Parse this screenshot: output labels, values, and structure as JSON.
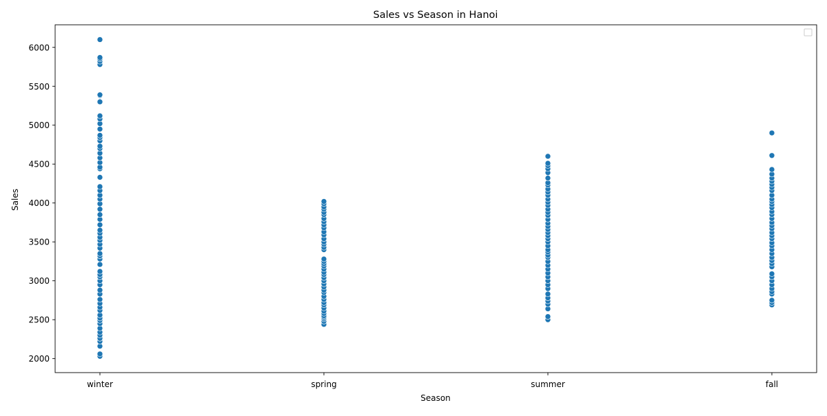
{
  "chart_data": {
    "type": "scatter",
    "title": "Sales vs Season in Hanoi",
    "xlabel": "Season",
    "ylabel": "Sales",
    "categories": [
      "winter",
      "spring",
      "summer",
      "fall"
    ],
    "yticks": [
      2000,
      2500,
      3000,
      3500,
      4000,
      4500,
      5000,
      5500,
      6000
    ],
    "ylim": [
      1820,
      6290
    ],
    "grid": false,
    "legend": "top-right",
    "legend_entries": [],
    "marker_color": "#1f77b4",
    "marker_edge_color": "#ffffff",
    "series": [
      {
        "category": "winter",
        "values": [
          2030,
          2060,
          2160,
          2220,
          2260,
          2300,
          2340,
          2390,
          2450,
          2490,
          2520,
          2560,
          2620,
          2660,
          2710,
          2760,
          2830,
          2880,
          2950,
          3000,
          3050,
          3080,
          3120,
          3210,
          3280,
          3320,
          3350,
          3420,
          3470,
          3520,
          3560,
          3610,
          3650,
          3720,
          3790,
          3850,
          3920,
          3990,
          4050,
          4100,
          4160,
          4210,
          4330,
          4440,
          4460,
          4520,
          4580,
          4640,
          4700,
          4730,
          4800,
          4840,
          4870,
          4950,
          5020,
          5080,
          5120,
          5300,
          5380,
          5390,
          5780,
          5820,
          5850,
          5870,
          6100
        ]
      },
      {
        "category": "spring",
        "values": [
          2440,
          2480,
          2510,
          2530,
          2550,
          2580,
          2610,
          2650,
          2690,
          2720,
          2760,
          2800,
          2850,
          2880,
          2920,
          2960,
          3000,
          3040,
          3080,
          3110,
          3150,
          3190,
          3220,
          3250,
          3280,
          3400,
          3430,
          3470,
          3500,
          3540,
          3590,
          3630,
          3680,
          3720,
          3760,
          3800,
          3850,
          3880,
          3920,
          3950,
          3990,
          4020
        ]
      },
      {
        "category": "summer",
        "values": [
          2500,
          2540,
          2640,
          2700,
          2740,
          2780,
          2830,
          2900,
          2950,
          3000,
          3050,
          3100,
          3150,
          3200,
          3250,
          3300,
          3330,
          3370,
          3400,
          3450,
          3500,
          3540,
          3580,
          3620,
          3660,
          3700,
          3740,
          3790,
          3840,
          3880,
          3920,
          3970,
          4010,
          4050,
          4100,
          4140,
          4180,
          4230,
          4260,
          4320,
          4390,
          4440,
          4480,
          4510,
          4600
        ]
      },
      {
        "category": "fall",
        "values": [
          2690,
          2720,
          2750,
          2830,
          2860,
          2900,
          2950,
          3000,
          3050,
          3090,
          3180,
          3220,
          3260,
          3300,
          3350,
          3400,
          3450,
          3490,
          3540,
          3580,
          3620,
          3670,
          3710,
          3750,
          3800,
          3850,
          3890,
          3940,
          3980,
          4020,
          4050,
          4100,
          4160,
          4200,
          4240,
          4280,
          4320,
          4370,
          4430,
          4610,
          4900
        ]
      }
    ]
  }
}
